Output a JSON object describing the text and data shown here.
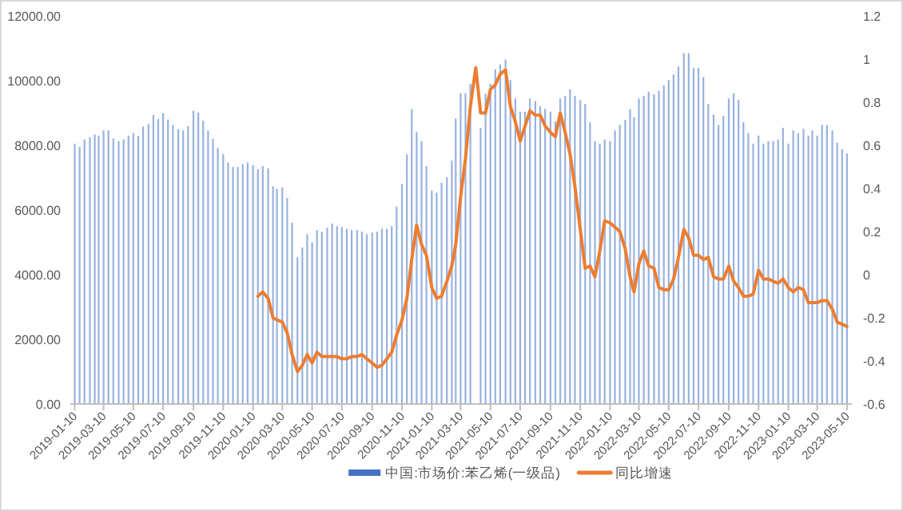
{
  "chart_data": {
    "type": "bar",
    "legend": "bottom",
    "x": [
      "2019-01-10",
      "2019-01-20",
      "2019-01-30",
      "2019-02-10",
      "2019-02-20",
      "2019-02-28",
      "2019-03-10",
      "2019-03-20",
      "2019-03-30",
      "2019-04-10",
      "2019-04-20",
      "2019-04-30",
      "2019-05-10",
      "2019-05-20",
      "2019-05-30",
      "2019-06-10",
      "2019-06-20",
      "2019-06-30",
      "2019-07-10",
      "2019-07-20",
      "2019-07-30",
      "2019-08-10",
      "2019-08-20",
      "2019-08-30",
      "2019-09-10",
      "2019-09-20",
      "2019-09-30",
      "2019-10-10",
      "2019-10-20",
      "2019-10-30",
      "2019-11-10",
      "2019-11-20",
      "2019-11-30",
      "2019-12-10",
      "2019-12-20",
      "2019-12-30",
      "2020-01-10",
      "2020-01-20",
      "2020-01-30",
      "2020-02-10",
      "2020-02-20",
      "2020-02-28",
      "2020-03-10",
      "2020-03-20",
      "2020-03-30",
      "2020-04-10",
      "2020-04-20",
      "2020-04-30",
      "2020-05-10",
      "2020-05-20",
      "2020-05-30",
      "2020-06-10",
      "2020-06-20",
      "2020-06-30",
      "2020-07-10",
      "2020-07-20",
      "2020-07-30",
      "2020-08-10",
      "2020-08-20",
      "2020-08-30",
      "2020-09-10",
      "2020-09-20",
      "2020-09-30",
      "2020-10-10",
      "2020-10-20",
      "2020-10-30",
      "2020-11-10",
      "2020-11-20",
      "2020-11-30",
      "2020-12-10",
      "2020-12-20",
      "2020-12-30",
      "2021-01-10",
      "2021-01-20",
      "2021-01-30",
      "2021-02-10",
      "2021-02-20",
      "2021-02-28",
      "2021-03-10",
      "2021-03-20",
      "2021-03-30",
      "2021-04-10",
      "2021-04-20",
      "2021-04-30",
      "2021-05-10",
      "2021-05-20",
      "2021-05-30",
      "2021-06-10",
      "2021-06-20",
      "2021-06-30",
      "2021-07-10",
      "2021-07-20",
      "2021-07-30",
      "2021-08-10",
      "2021-08-20",
      "2021-08-30",
      "2021-09-10",
      "2021-09-20",
      "2021-09-30",
      "2021-10-10",
      "2021-10-20",
      "2021-10-30",
      "2021-11-10",
      "2021-11-20",
      "2021-11-30",
      "2021-12-10",
      "2021-12-20",
      "2021-12-30",
      "2022-01-10",
      "2022-01-20",
      "2022-01-30",
      "2022-02-10",
      "2022-02-20",
      "2022-02-28",
      "2022-03-10",
      "2022-03-20",
      "2022-03-30",
      "2022-04-10",
      "2022-04-20",
      "2022-04-30",
      "2022-05-10",
      "2022-05-20",
      "2022-05-30",
      "2022-06-10",
      "2022-06-20",
      "2022-06-30",
      "2022-07-10",
      "2022-07-20",
      "2022-07-30",
      "2022-08-10",
      "2022-08-20",
      "2022-08-30",
      "2022-09-10",
      "2022-09-20",
      "2022-09-30",
      "2022-10-10",
      "2022-10-20",
      "2022-10-30",
      "2022-11-10",
      "2022-11-20",
      "2022-11-30",
      "2022-12-10",
      "2022-12-20",
      "2022-12-30",
      "2023-01-10",
      "2023-01-20",
      "2023-01-30",
      "2023-02-10",
      "2023-02-20",
      "2023-02-28",
      "2023-03-10",
      "2023-03-20",
      "2023-03-30",
      "2023-04-10",
      "2023-04-20",
      "2023-04-30",
      "2023-05-10"
    ],
    "xlim": [
      "2019-01-01",
      "2023-05-20"
    ],
    "xticks": [
      "2019-01-10",
      "2019-03-10",
      "2019-05-10",
      "2019-07-10",
      "2019-09-10",
      "2019-11-10",
      "2020-01-10",
      "2020-03-10",
      "2020-05-10",
      "2020-07-10",
      "2020-09-10",
      "2020-11-10",
      "2021-01-10",
      "2021-03-10",
      "2021-05-10",
      "2021-07-10",
      "2021-09-10",
      "2021-11-10",
      "2022-01-10",
      "2022-03-10",
      "2022-05-10",
      "2022-07-10",
      "2022-09-10",
      "2022-11-10",
      "2023-01-10",
      "2023-03-10",
      "2023-05-10"
    ],
    "ylim": [
      0,
      12000
    ],
    "yticks": [
      {
        "value": 0,
        "label": "0.00"
      },
      {
        "value": 2000,
        "label": "2000.00"
      },
      {
        "value": 4000,
        "label": "4000.00"
      },
      {
        "value": 6000,
        "label": "6000.00"
      },
      {
        "value": 8000,
        "label": "8000.00"
      },
      {
        "value": 10000,
        "label": "10000.00"
      },
      {
        "value": 12000,
        "label": "12000.00"
      }
    ],
    "y2lim": [
      -0.6,
      1.2
    ],
    "y2ticks": [
      -0.6,
      -0.4,
      -0.2,
      0,
      0.2,
      0.4,
      0.6,
      0.8,
      1,
      1.2
    ],
    "series": [
      {
        "name": "中国:市场价:苯乙烯(一级品)",
        "color": "#4472c4",
        "values": [
          8050,
          7950,
          8180,
          8250,
          8330,
          8300,
          8460,
          8460,
          8210,
          8130,
          8180,
          8300,
          8380,
          8290,
          8580,
          8660,
          8940,
          8810,
          8990,
          8800,
          8630,
          8500,
          8460,
          8600,
          9070,
          9010,
          8760,
          8460,
          8200,
          7920,
          7720,
          7470,
          7330,
          7330,
          7420,
          7470,
          7390,
          7260,
          7360,
          7290,
          6730,
          6650,
          6700,
          6370,
          5610,
          4540,
          4840,
          5250,
          5000,
          5380,
          5330,
          5450,
          5580,
          5500,
          5470,
          5420,
          5380,
          5380,
          5330,
          5250,
          5300,
          5330,
          5420,
          5420,
          5500,
          6110,
          6800,
          7720,
          9120,
          8410,
          8130,
          7360,
          6600,
          6540,
          6840,
          7010,
          7520,
          8830,
          9610,
          9610,
          9900,
          null,
          8540,
          9600,
          9900,
          10350,
          10500,
          10650,
          10020,
          9450,
          9040,
          9040,
          9450,
          9370,
          9210,
          9130,
          9040,
          8740,
          9450,
          9530,
          9730,
          9530,
          9400,
          9280,
          8710,
          8130,
          8050,
          8180,
          8130,
          8460,
          8630,
          8790,
          9120,
          8870,
          9450,
          9530,
          9660,
          9580,
          9690,
          9860,
          10020,
          10190,
          10440,
          10850,
          10850,
          10390,
          10390,
          10110,
          9280,
          8950,
          8630,
          8910,
          9450,
          9610,
          9410,
          8710,
          8380,
          8050,
          8300,
          8050,
          8130,
          8130,
          8180,
          8540,
          8050,
          8460,
          8380,
          8510,
          8300,
          8460,
          8300,
          8630,
          8630,
          8460,
          8080,
          7880,
          7750
        ]
      },
      {
        "name": "同比增速",
        "type": "line",
        "axis": "y2",
        "color": "#ed7d31",
        "values": [
          null,
          null,
          null,
          null,
          null,
          null,
          null,
          null,
          null,
          null,
          null,
          null,
          null,
          null,
          null,
          null,
          null,
          null,
          null,
          null,
          null,
          null,
          null,
          null,
          null,
          null,
          null,
          null,
          null,
          null,
          null,
          null,
          null,
          null,
          null,
          null,
          null,
          -0.1,
          -0.08,
          -0.11,
          -0.2,
          -0.21,
          -0.22,
          -0.27,
          -0.37,
          -0.45,
          -0.42,
          -0.37,
          -0.41,
          -0.36,
          -0.38,
          -0.38,
          -0.38,
          -0.38,
          -0.39,
          -0.39,
          -0.38,
          -0.38,
          -0.37,
          -0.39,
          -0.41,
          -0.43,
          -0.42,
          -0.39,
          -0.36,
          -0.28,
          -0.21,
          -0.11,
          0.07,
          0.23,
          0.14,
          0.09,
          -0.06,
          -0.11,
          -0.1,
          -0.03,
          0.04,
          0.14,
          0.36,
          0.54,
          0.78,
          0.96,
          0.75,
          0.75,
          0.86,
          0.88,
          0.93,
          0.95,
          0.78,
          0.71,
          0.62,
          0.69,
          0.76,
          0.74,
          0.74,
          0.69,
          0.66,
          0.64,
          0.75,
          0.66,
          0.56,
          0.41,
          0.21,
          0.03,
          0.04,
          -0.01,
          0.11,
          0.25,
          0.24,
          0.22,
          0.2,
          0.12,
          -0.01,
          -0.08,
          0.05,
          0.11,
          0.04,
          0.03,
          -0.06,
          -0.07,
          -0.07,
          -0.02,
          0.08,
          0.21,
          0.17,
          0.09,
          0.09,
          0.07,
          0.08,
          -0.01,
          -0.02,
          -0.02,
          0.04,
          -0.03,
          -0.06,
          -0.1,
          -0.1,
          -0.09,
          0.02,
          -0.02,
          -0.02,
          -0.03,
          -0.04,
          -0.02,
          -0.06,
          -0.08,
          -0.06,
          -0.07,
          -0.13,
          -0.13,
          -0.13,
          -0.12,
          -0.12,
          -0.16,
          -0.22,
          -0.23,
          -0.24
        ]
      }
    ]
  }
}
